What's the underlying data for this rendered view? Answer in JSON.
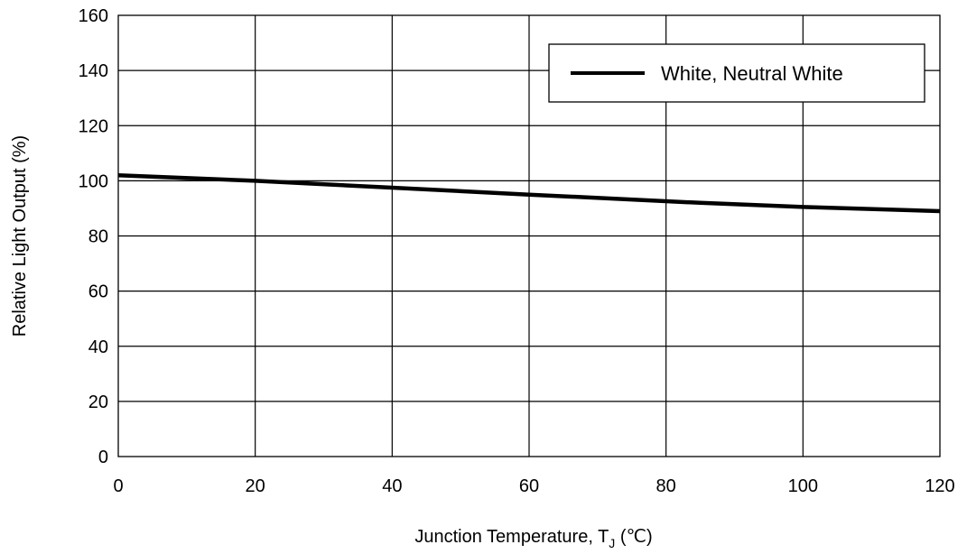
{
  "chart_data": {
    "type": "line",
    "title": "",
    "xlabel": "Junction Temperature, T",
    "xlabel_sub": "J",
    "xlabel_unit": " (℃)",
    "ylabel": "Relative Light Output (%)",
    "xlim": [
      0,
      120
    ],
    "ylim": [
      0,
      160
    ],
    "x_ticks": [
      0,
      20,
      40,
      60,
      80,
      100,
      120
    ],
    "y_ticks": [
      0,
      20,
      40,
      60,
      80,
      100,
      120,
      140,
      160
    ],
    "grid": true,
    "legend_position": "top-right",
    "series": [
      {
        "name": "White, Neutral White",
        "color": "#000000",
        "x": [
          0,
          20,
          40,
          60,
          85,
          100,
          120
        ],
        "y": [
          102,
          100,
          97.5,
          95,
          92,
          90.5,
          89
        ]
      }
    ]
  }
}
